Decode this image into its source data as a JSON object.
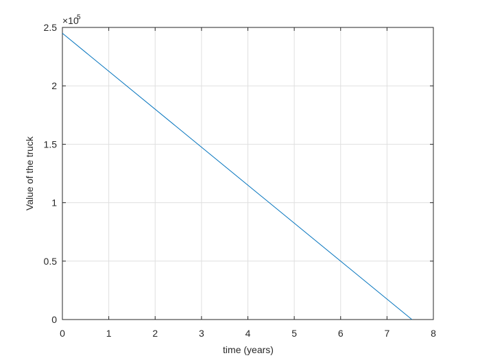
{
  "chart_data": {
    "type": "line",
    "x_label": "time (years)",
    "y_label": "Value of the truck",
    "y_exponent_base": "×10",
    "y_exponent": "5",
    "x": [
      0,
      7.538
    ],
    "series": [
      {
        "color": "#0072bd",
        "values": [
          245000,
          0
        ]
      }
    ],
    "xlim": [
      0,
      8
    ],
    "xticks": [
      0,
      1,
      2,
      3,
      4,
      5,
      6,
      7,
      8
    ],
    "ylim": [
      0,
      250000
    ],
    "yticks": [
      0,
      {
        "value": 50000,
        "label": "0.5"
      },
      {
        "value": 100000,
        "label": "1"
      },
      {
        "value": 150000,
        "label": "1.5"
      },
      {
        "value": 200000,
        "label": "2"
      },
      {
        "value": 250000,
        "label": "2.5"
      }
    ],
    "grid": true
  }
}
